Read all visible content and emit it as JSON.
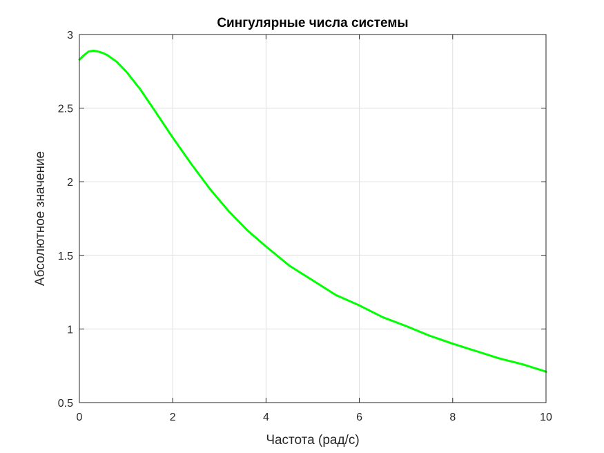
{
  "chart_data": {
    "type": "line",
    "title": "Сингулярные числа системы",
    "xlabel": "Частота (рад/с)",
    "ylabel": "Абсолютное значение",
    "xlim": [
      0,
      10
    ],
    "ylim": [
      0.5,
      3
    ],
    "xticks": [
      0,
      2,
      4,
      6,
      8,
      10
    ],
    "yticks": [
      0.5,
      1,
      1.5,
      2,
      2.5,
      3
    ],
    "xtick_labels": [
      "0",
      "2",
      "4",
      "6",
      "8",
      "10"
    ],
    "ytick_labels": [
      "0.5",
      "1",
      "1.5",
      "2",
      "2.5",
      "3"
    ],
    "grid": true,
    "box": true,
    "series": [
      {
        "color": "#00ff00",
        "x": [
          0,
          0.1,
          0.2,
          0.3,
          0.4,
          0.5,
          0.6,
          0.8,
          1.0,
          1.3,
          1.6,
          2.0,
          2.4,
          2.8,
          3.2,
          3.6,
          4.0,
          4.5,
          5.0,
          5.5,
          6.0,
          6.5,
          7.0,
          7.5,
          8.0,
          8.5,
          9.0,
          9.5,
          10.0
        ],
        "y": [
          2.83,
          2.86,
          2.885,
          2.89,
          2.885,
          2.875,
          2.86,
          2.815,
          2.75,
          2.63,
          2.49,
          2.3,
          2.12,
          1.95,
          1.8,
          1.67,
          1.56,
          1.43,
          1.33,
          1.23,
          1.16,
          1.08,
          1.02,
          0.955,
          0.9,
          0.85,
          0.8,
          0.76,
          0.71
        ]
      }
    ]
  }
}
